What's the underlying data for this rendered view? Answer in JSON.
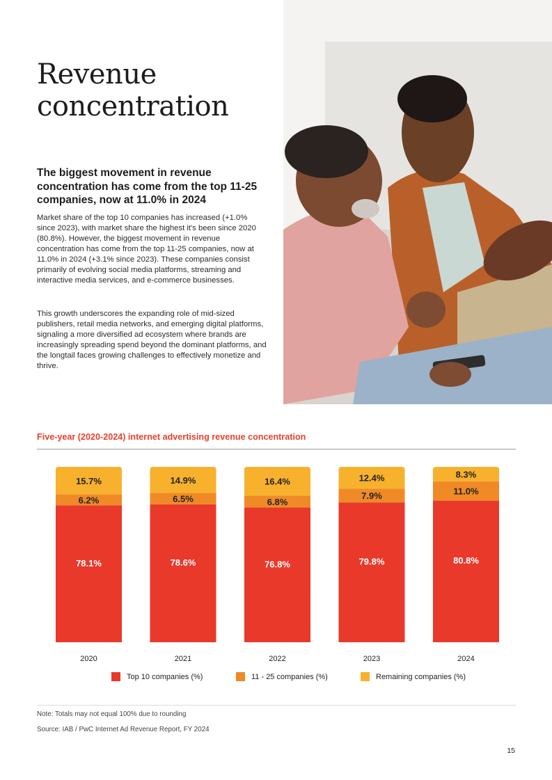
{
  "page": {
    "title": "Revenue concentration",
    "subheading": "The biggest movement in revenue concentration has come from the top 11-25 companies, now at 11.0% in 2024",
    "paragraph1": "Market share of the top 10 companies has increased (+1.0% since 2023), with market share the highest it's been since 2020 (80.8%). However, the biggest movement in revenue concentration has come from the top 11-25 companies, now at 11.0% in 2024 (+3.1% since 2023). These companies consist primarily of evolving social media platforms, streaming and interactive media services, and e-commerce businesses.",
    "paragraph2": "This growth underscores the expanding role of mid-sized publishers, retail media networks, and emerging digital platforms, signaling a more diversified ad ecosystem where brands are increasingly spreading spend beyond the dominant platforms, and the longtail faces growing challenges to effectively monetize and thrive.",
    "note": "Note: Totals may not equal 100% due to rounding",
    "source": "Source: IAB / PwC Internet Ad Revenue Report, FY 2024",
    "page_number": "15"
  },
  "chart_data": {
    "type": "bar",
    "stacked": true,
    "title": "Five-year (2020-2024) internet advertising revenue concentration",
    "categories": [
      "2020",
      "2021",
      "2022",
      "2023",
      "2024"
    ],
    "series": [
      {
        "name": "Top 10 companies (%)",
        "color": "#e8392b",
        "values": [
          78.1,
          78.6,
          76.8,
          79.8,
          80.8
        ],
        "labels": [
          "78.1%",
          "78.6%",
          "76.8%",
          "79.8%",
          "80.8%"
        ],
        "label_color": "#ffffff"
      },
      {
        "name": "11 - 25 companies (%)",
        "color": "#ef8a27",
        "values": [
          6.2,
          6.5,
          6.8,
          7.9,
          11.0
        ],
        "labels": [
          "6.2%",
          "6.5%",
          "6.8%",
          "7.9%",
          "11.0%"
        ],
        "label_color": "#222222"
      },
      {
        "name": "Remaining companies (%)",
        "color": "#f8b12d",
        "values": [
          15.7,
          14.9,
          16.4,
          12.4,
          8.3
        ],
        "labels": [
          "15.7%",
          "14.9%",
          "16.4%",
          "12.4%",
          "8.3%"
        ],
        "label_color": "#222222"
      }
    ],
    "legend_position": "bottom",
    "grid": false
  }
}
